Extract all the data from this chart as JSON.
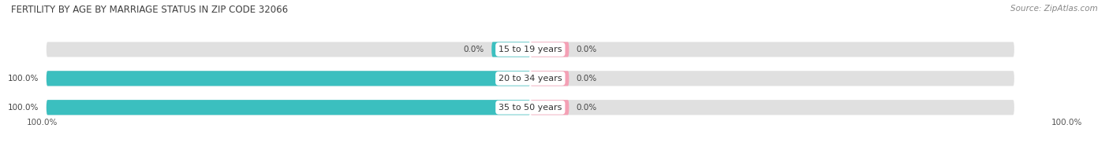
{
  "title": "FERTILITY BY AGE BY MARRIAGE STATUS IN ZIP CODE 32066",
  "source": "Source: ZipAtlas.com",
  "categories": [
    "15 to 19 years",
    "20 to 34 years",
    "35 to 50 years"
  ],
  "married_values": [
    0.0,
    100.0,
    100.0
  ],
  "unmarried_values": [
    0.0,
    0.0,
    0.0
  ],
  "married_color": "#3bbfbf",
  "unmarried_color": "#f4a0b5",
  "bar_bg_color": "#e0e0e0",
  "title_fontsize": 8.5,
  "label_fontsize": 8,
  "value_fontsize": 7.5,
  "source_fontsize": 7.5,
  "legend_fontsize": 8,
  "background_color": "#ffffff",
  "bottom_left_label": "100.0%",
  "bottom_right_label": "100.0%"
}
